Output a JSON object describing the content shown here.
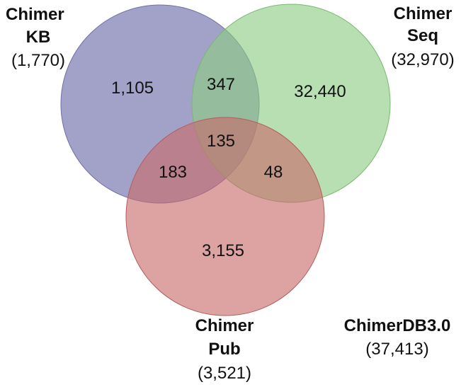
{
  "sets": {
    "kb": {
      "name_line1": "Chimer",
      "name_line2": "KB",
      "total": "(1,770)",
      "color": "#7E7EB4"
    },
    "seq": {
      "name_line1": "Chimer",
      "name_line2": "Seq",
      "total": "(32,970)",
      "color": "#8BCB83"
    },
    "pub": {
      "name_line1": "Chimer",
      "name_line2": "Pub",
      "total": "(3,521)",
      "color": "#C86A6A"
    }
  },
  "regions": {
    "kb_only": "1,105",
    "kb_seq": "347",
    "seq_only": "32,440",
    "all_three": "135",
    "kb_pub": "183",
    "seq_pub": "48",
    "pub_only": "3,155"
  },
  "database": {
    "name": "ChimerDB3.0",
    "total": "(37,413)"
  }
}
